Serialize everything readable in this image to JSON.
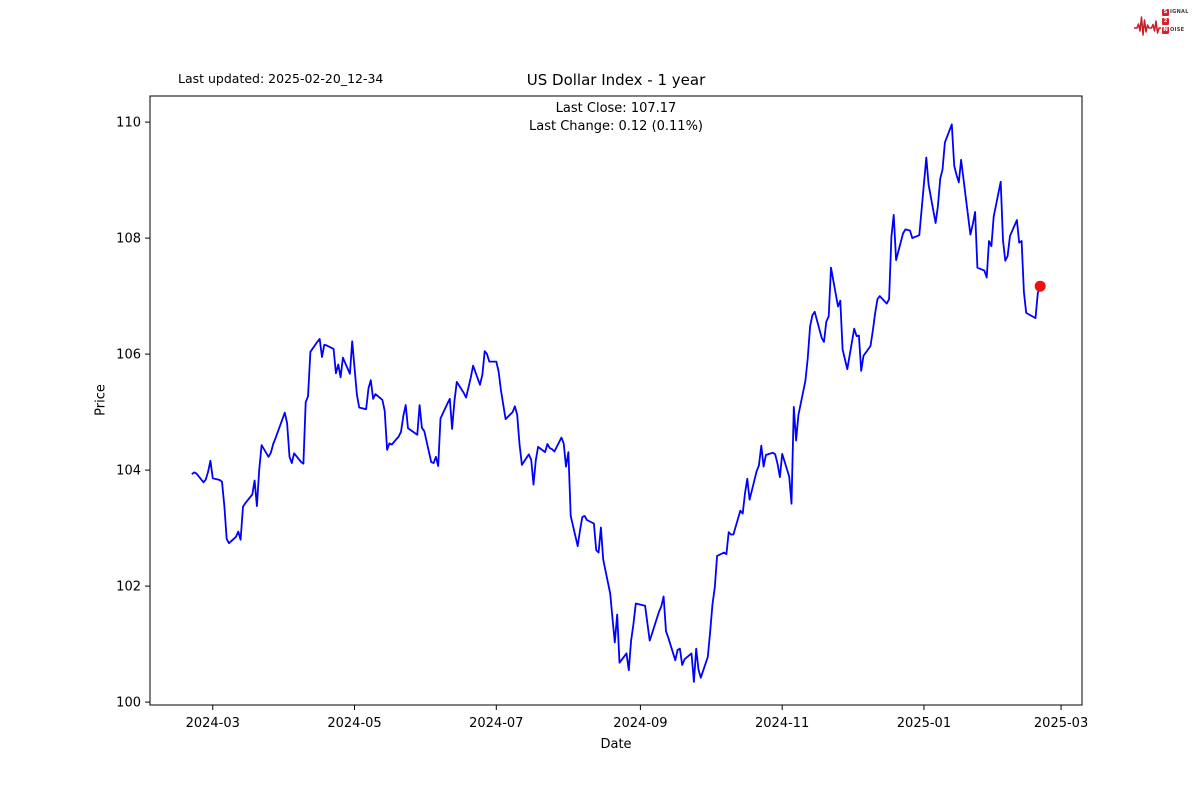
{
  "header": {
    "last_updated": "Last updated: 2025-02-20_12-34",
    "title": "US Dollar Index - 1 year",
    "subtitle_line1": "Last Close: 107.17",
    "subtitle_line2": "Last Change: 0.12 (0.11%)"
  },
  "logo": {
    "row1_initial": "S",
    "row1_rest": "IGNAL",
    "row2_initial": "2",
    "row2_rest": "",
    "row3_initial": "N",
    "row3_rest": "OISE",
    "ecg_color": "#c41e2a"
  },
  "chart_data": {
    "type": "line",
    "title": "US Dollar Index - 1 year",
    "xlabel": "Date",
    "ylabel": "Price",
    "last_close": 107.17,
    "last_change": "0.12 (0.11%)",
    "line_color": "#0000ff",
    "marker_color": "#f40f0f",
    "axis_color": "#000000",
    "grid": false,
    "xlim": [
      "2024-02-03",
      "2025-03-10"
    ],
    "ylim": [
      99.95,
      110.45
    ],
    "y_ticks": [
      100,
      102,
      104,
      106,
      108,
      110
    ],
    "x_ticks": [
      {
        "date": "2024-03-01",
        "label": "2024-03"
      },
      {
        "date": "2024-05-01",
        "label": "2024-05"
      },
      {
        "date": "2024-07-01",
        "label": "2024-07"
      },
      {
        "date": "2024-09-01",
        "label": "2024-09"
      },
      {
        "date": "2024-11-01",
        "label": "2024-11"
      },
      {
        "date": "2025-01-01",
        "label": "2025-01"
      },
      {
        "date": "2025-03-01",
        "label": "2025-03"
      }
    ],
    "series": [
      {
        "name": "US Dollar Index",
        "points": [
          [
            "2024-02-21",
            103.93
          ],
          [
            "2024-02-22",
            103.96
          ],
          [
            "2024-02-23",
            103.94
          ],
          [
            "2024-02-26",
            103.79
          ],
          [
            "2024-02-27",
            103.84
          ],
          [
            "2024-02-28",
            103.97
          ],
          [
            "2024-02-29",
            104.16
          ],
          [
            "2024-03-01",
            103.86
          ],
          [
            "2024-03-04",
            103.83
          ],
          [
            "2024-03-05",
            103.8
          ],
          [
            "2024-03-06",
            103.37
          ],
          [
            "2024-03-07",
            102.81
          ],
          [
            "2024-03-08",
            102.74
          ],
          [
            "2024-03-11",
            102.85
          ],
          [
            "2024-03-12",
            102.94
          ],
          [
            "2024-03-13",
            102.8
          ],
          [
            "2024-03-14",
            103.37
          ],
          [
            "2024-03-15",
            103.43
          ],
          [
            "2024-03-18",
            103.58
          ],
          [
            "2024-03-19",
            103.82
          ],
          [
            "2024-03-20",
            103.38
          ],
          [
            "2024-03-21",
            104.0
          ],
          [
            "2024-03-22",
            104.43
          ],
          [
            "2024-03-25",
            104.23
          ],
          [
            "2024-03-26",
            104.3
          ],
          [
            "2024-03-27",
            104.45
          ],
          [
            "2024-03-28",
            104.55
          ],
          [
            "2024-04-01",
            104.99
          ],
          [
            "2024-04-02",
            104.81
          ],
          [
            "2024-04-03",
            104.23
          ],
          [
            "2024-04-04",
            104.12
          ],
          [
            "2024-04-05",
            104.29
          ],
          [
            "2024-04-08",
            104.14
          ],
          [
            "2024-04-09",
            104.11
          ],
          [
            "2024-04-10",
            105.17
          ],
          [
            "2024-04-11",
            105.27
          ],
          [
            "2024-04-12",
            106.04
          ],
          [
            "2024-04-15",
            106.21
          ],
          [
            "2024-04-16",
            106.26
          ],
          [
            "2024-04-17",
            105.95
          ],
          [
            "2024-04-18",
            106.16
          ],
          [
            "2024-04-19",
            106.15
          ],
          [
            "2024-04-22",
            106.09
          ],
          [
            "2024-04-23",
            105.67
          ],
          [
            "2024-04-24",
            105.82
          ],
          [
            "2024-04-25",
            105.6
          ],
          [
            "2024-04-26",
            105.94
          ],
          [
            "2024-04-29",
            105.66
          ],
          [
            "2024-04-30",
            106.22
          ],
          [
            "2024-05-01",
            105.77
          ],
          [
            "2024-05-02",
            105.3
          ],
          [
            "2024-05-03",
            105.08
          ],
          [
            "2024-05-06",
            105.05
          ],
          [
            "2024-05-07",
            105.41
          ],
          [
            "2024-05-08",
            105.55
          ],
          [
            "2024-05-09",
            105.23
          ],
          [
            "2024-05-10",
            105.31
          ],
          [
            "2024-05-13",
            105.21
          ],
          [
            "2024-05-14",
            105.02
          ],
          [
            "2024-05-15",
            104.35
          ],
          [
            "2024-05-16",
            104.46
          ],
          [
            "2024-05-17",
            104.44
          ],
          [
            "2024-05-20",
            104.58
          ],
          [
            "2024-05-21",
            104.66
          ],
          [
            "2024-05-22",
            104.93
          ],
          [
            "2024-05-23",
            105.12
          ],
          [
            "2024-05-24",
            104.72
          ],
          [
            "2024-05-28",
            104.61
          ],
          [
            "2024-05-29",
            105.12
          ],
          [
            "2024-05-30",
            104.73
          ],
          [
            "2024-05-31",
            104.67
          ],
          [
            "2024-06-03",
            104.14
          ],
          [
            "2024-06-04",
            104.12
          ],
          [
            "2024-06-05",
            104.23
          ],
          [
            "2024-06-06",
            104.07
          ],
          [
            "2024-06-07",
            104.89
          ],
          [
            "2024-06-10",
            105.15
          ],
          [
            "2024-06-11",
            105.23
          ],
          [
            "2024-06-12",
            104.71
          ],
          [
            "2024-06-13",
            105.2
          ],
          [
            "2024-06-14",
            105.52
          ],
          [
            "2024-06-17",
            105.33
          ],
          [
            "2024-06-18",
            105.25
          ],
          [
            "2024-06-20",
            105.59
          ],
          [
            "2024-06-21",
            105.8
          ],
          [
            "2024-06-24",
            105.47
          ],
          [
            "2024-06-25",
            105.65
          ],
          [
            "2024-06-26",
            106.05
          ],
          [
            "2024-06-27",
            106.0
          ],
          [
            "2024-06-28",
            105.87
          ],
          [
            "2024-07-01",
            105.87
          ],
          [
            "2024-07-02",
            105.7
          ],
          [
            "2024-07-03",
            105.37
          ],
          [
            "2024-07-05",
            104.88
          ],
          [
            "2024-07-08",
            105.0
          ],
          [
            "2024-07-09",
            105.1
          ],
          [
            "2024-07-10",
            104.95
          ],
          [
            "2024-07-11",
            104.45
          ],
          [
            "2024-07-12",
            104.09
          ],
          [
            "2024-07-15",
            104.27
          ],
          [
            "2024-07-16",
            104.18
          ],
          [
            "2024-07-17",
            103.75
          ],
          [
            "2024-07-18",
            104.17
          ],
          [
            "2024-07-19",
            104.4
          ],
          [
            "2024-07-22",
            104.31
          ],
          [
            "2024-07-23",
            104.45
          ],
          [
            "2024-07-24",
            104.38
          ],
          [
            "2024-07-25",
            104.36
          ],
          [
            "2024-07-26",
            104.32
          ],
          [
            "2024-07-29",
            104.56
          ],
          [
            "2024-07-30",
            104.46
          ],
          [
            "2024-07-31",
            104.06
          ],
          [
            "2024-08-01",
            104.31
          ],
          [
            "2024-08-02",
            103.21
          ],
          [
            "2024-08-05",
            102.69
          ],
          [
            "2024-08-06",
            102.96
          ],
          [
            "2024-08-07",
            103.19
          ],
          [
            "2024-08-08",
            103.21
          ],
          [
            "2024-08-09",
            103.14
          ],
          [
            "2024-08-12",
            103.08
          ],
          [
            "2024-08-13",
            102.62
          ],
          [
            "2024-08-14",
            102.58
          ],
          [
            "2024-08-15",
            103.01
          ],
          [
            "2024-08-16",
            102.46
          ],
          [
            "2024-08-19",
            101.87
          ],
          [
            "2024-08-20",
            101.44
          ],
          [
            "2024-08-21",
            101.03
          ],
          [
            "2024-08-22",
            101.51
          ],
          [
            "2024-08-23",
            100.68
          ],
          [
            "2024-08-26",
            100.84
          ],
          [
            "2024-08-27",
            100.55
          ],
          [
            "2024-08-28",
            101.06
          ],
          [
            "2024-08-29",
            101.34
          ],
          [
            "2024-08-30",
            101.7
          ],
          [
            "2024-09-03",
            101.66
          ],
          [
            "2024-09-04",
            101.36
          ],
          [
            "2024-09-05",
            101.06
          ],
          [
            "2024-09-06",
            101.18
          ],
          [
            "2024-09-09",
            101.56
          ],
          [
            "2024-09-10",
            101.65
          ],
          [
            "2024-09-11",
            101.82
          ],
          [
            "2024-09-12",
            101.22
          ],
          [
            "2024-09-13",
            101.11
          ],
          [
            "2024-09-16",
            100.72
          ],
          [
            "2024-09-17",
            100.9
          ],
          [
            "2024-09-18",
            100.92
          ],
          [
            "2024-09-19",
            100.64
          ],
          [
            "2024-09-20",
            100.74
          ],
          [
            "2024-09-23",
            100.84
          ],
          [
            "2024-09-24",
            100.35
          ],
          [
            "2024-09-25",
            100.92
          ],
          [
            "2024-09-26",
            100.56
          ],
          [
            "2024-09-27",
            100.42
          ],
          [
            "2024-09-30",
            100.78
          ],
          [
            "2024-10-01",
            101.2
          ],
          [
            "2024-10-02",
            101.69
          ],
          [
            "2024-10-03",
            101.98
          ],
          [
            "2024-10-04",
            102.52
          ],
          [
            "2024-10-07",
            102.58
          ],
          [
            "2024-10-08",
            102.55
          ],
          [
            "2024-10-09",
            102.93
          ],
          [
            "2024-10-10",
            102.89
          ],
          [
            "2024-10-11",
            102.89
          ],
          [
            "2024-10-14",
            103.3
          ],
          [
            "2024-10-15",
            103.25
          ],
          [
            "2024-10-16",
            103.6
          ],
          [
            "2024-10-17",
            103.85
          ],
          [
            "2024-10-18",
            103.49
          ],
          [
            "2024-10-21",
            103.98
          ],
          [
            "2024-10-22",
            104.08
          ],
          [
            "2024-10-23",
            104.42
          ],
          [
            "2024-10-24",
            104.06
          ],
          [
            "2024-10-25",
            104.26
          ],
          [
            "2024-10-28",
            104.3
          ],
          [
            "2024-10-29",
            104.27
          ],
          [
            "2024-10-30",
            104.11
          ],
          [
            "2024-10-31",
            103.88
          ],
          [
            "2024-11-01",
            104.28
          ],
          [
            "2024-11-04",
            103.89
          ],
          [
            "2024-11-05",
            103.42
          ],
          [
            "2024-11-06",
            105.09
          ],
          [
            "2024-11-07",
            104.51
          ],
          [
            "2024-11-08",
            104.95
          ],
          [
            "2024-11-11",
            105.54
          ],
          [
            "2024-11-12",
            105.92
          ],
          [
            "2024-11-13",
            106.48
          ],
          [
            "2024-11-14",
            106.67
          ],
          [
            "2024-11-15",
            106.73
          ],
          [
            "2024-11-18",
            106.28
          ],
          [
            "2024-11-19",
            106.21
          ],
          [
            "2024-11-20",
            106.56
          ],
          [
            "2024-11-21",
            106.65
          ],
          [
            "2024-11-22",
            107.49
          ],
          [
            "2024-11-25",
            106.82
          ],
          [
            "2024-11-26",
            106.92
          ],
          [
            "2024-11-27",
            106.08
          ],
          [
            "2024-11-29",
            105.74
          ],
          [
            "2024-12-02",
            106.44
          ],
          [
            "2024-12-03",
            106.31
          ],
          [
            "2024-12-04",
            106.32
          ],
          [
            "2024-12-05",
            105.71
          ],
          [
            "2024-12-06",
            105.97
          ],
          [
            "2024-12-09",
            106.14
          ],
          [
            "2024-12-10",
            106.4
          ],
          [
            "2024-12-11",
            106.7
          ],
          [
            "2024-12-12",
            106.95
          ],
          [
            "2024-12-13",
            107.0
          ],
          [
            "2024-12-16",
            106.87
          ],
          [
            "2024-12-17",
            106.95
          ],
          [
            "2024-12-18",
            108.02
          ],
          [
            "2024-12-19",
            108.4
          ],
          [
            "2024-12-20",
            107.62
          ],
          [
            "2024-12-23",
            108.08
          ],
          [
            "2024-12-24",
            108.15
          ],
          [
            "2024-12-26",
            108.13
          ],
          [
            "2024-12-27",
            108.0
          ],
          [
            "2024-12-30",
            108.05
          ],
          [
            "2024-12-31",
            108.49
          ],
          [
            "2025-01-02",
            109.39
          ],
          [
            "2025-01-03",
            108.92
          ],
          [
            "2025-01-06",
            108.26
          ],
          [
            "2025-01-07",
            108.55
          ],
          [
            "2025-01-08",
            109.02
          ],
          [
            "2025-01-09",
            109.18
          ],
          [
            "2025-01-10",
            109.65
          ],
          [
            "2025-01-13",
            109.96
          ],
          [
            "2025-01-14",
            109.25
          ],
          [
            "2025-01-15",
            109.09
          ],
          [
            "2025-01-16",
            108.96
          ],
          [
            "2025-01-17",
            109.35
          ],
          [
            "2025-01-21",
            108.06
          ],
          [
            "2025-01-22",
            108.24
          ],
          [
            "2025-01-23",
            108.45
          ],
          [
            "2025-01-24",
            107.49
          ],
          [
            "2025-01-27",
            107.44
          ],
          [
            "2025-01-28",
            107.32
          ],
          [
            "2025-01-29",
            107.95
          ],
          [
            "2025-01-30",
            107.86
          ],
          [
            "2025-01-31",
            108.37
          ],
          [
            "2025-02-03",
            108.97
          ],
          [
            "2025-02-04",
            107.96
          ],
          [
            "2025-02-05",
            107.61
          ],
          [
            "2025-02-06",
            107.69
          ],
          [
            "2025-02-07",
            108.04
          ],
          [
            "2025-02-10",
            108.31
          ],
          [
            "2025-02-11",
            107.92
          ],
          [
            "2025-02-12",
            107.95
          ],
          [
            "2025-02-13",
            107.07
          ],
          [
            "2025-02-14",
            106.71
          ],
          [
            "2025-02-18",
            106.62
          ],
          [
            "2025-02-19",
            107.05
          ],
          [
            "2025-02-20",
            107.17
          ]
        ]
      }
    ]
  }
}
